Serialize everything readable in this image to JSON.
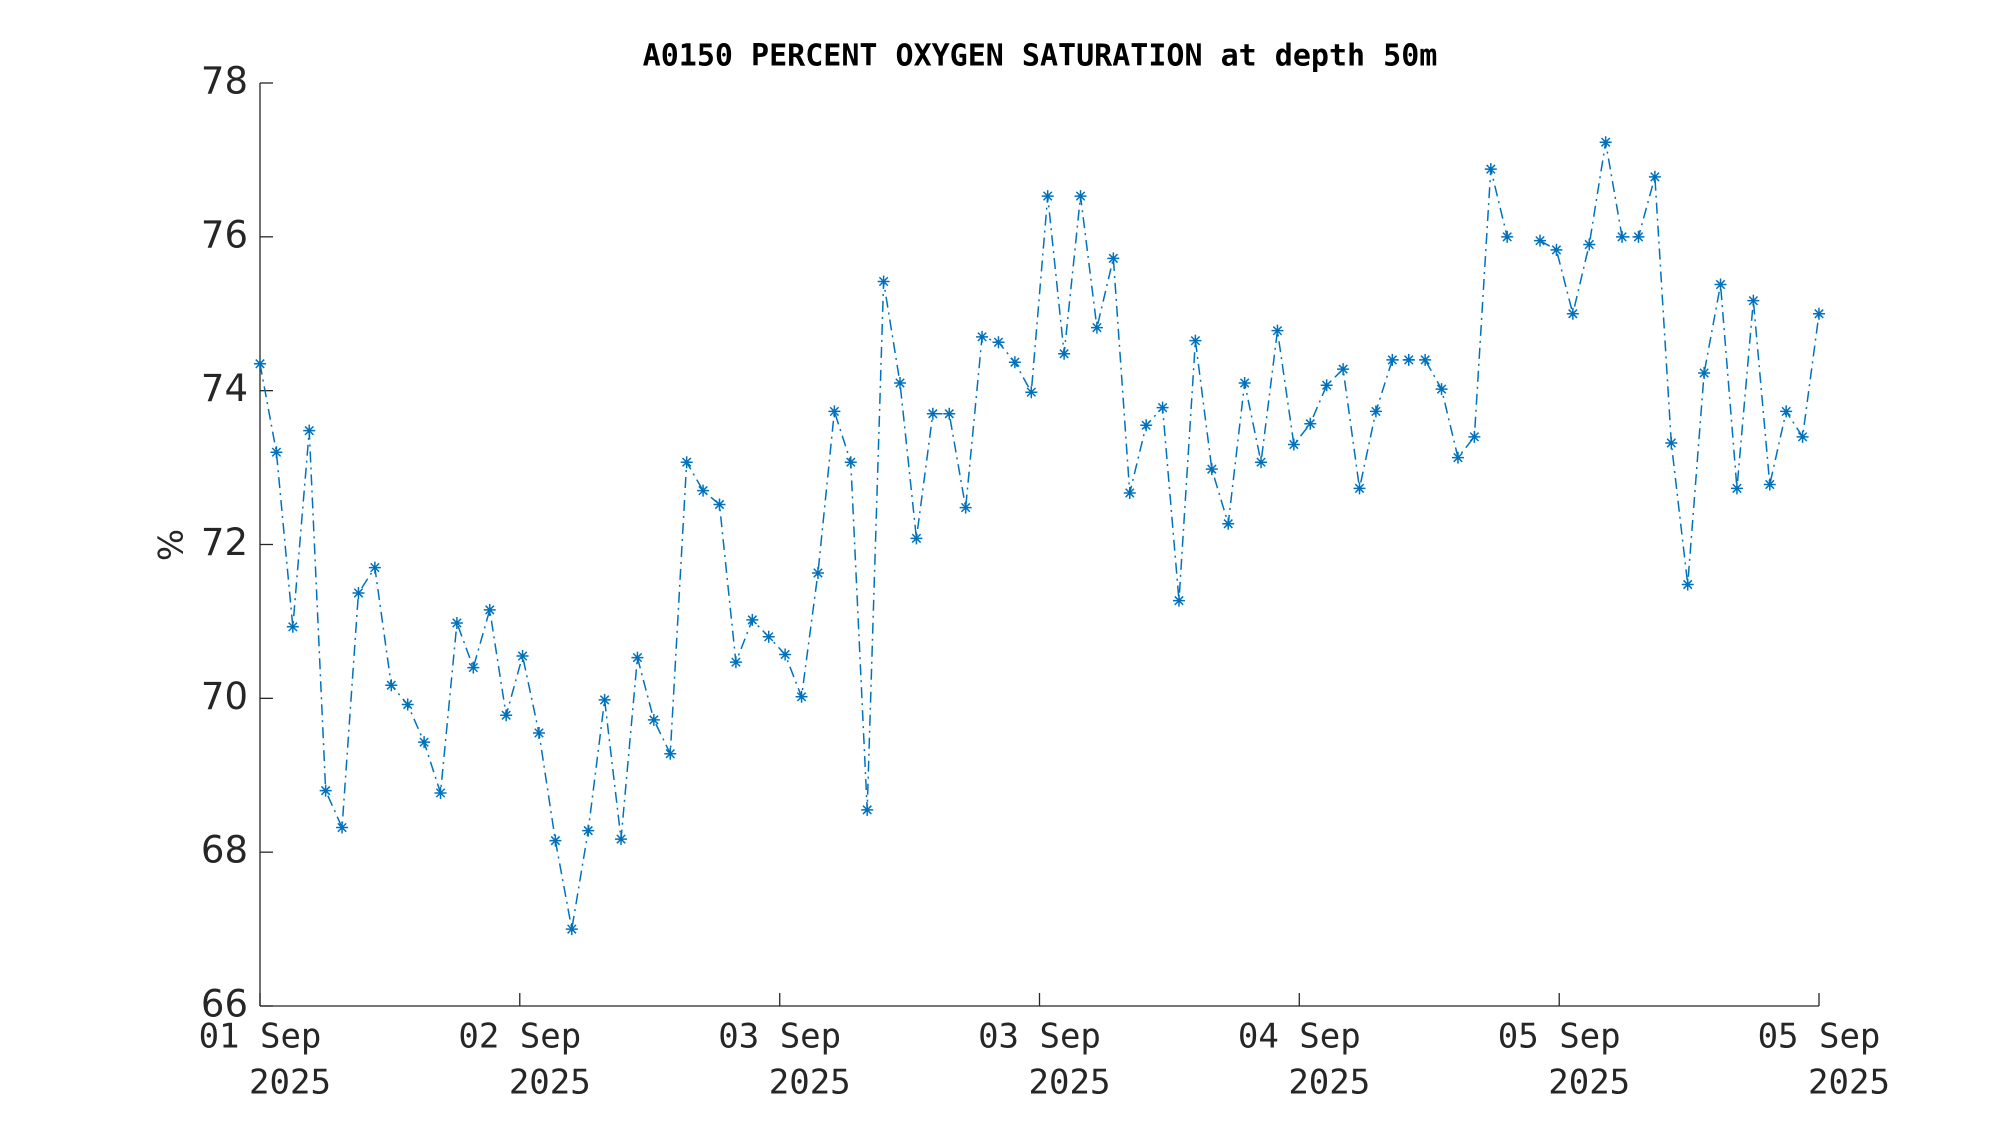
{
  "chart_data": {
    "type": "line",
    "title": "A0150 PERCENT OXYGEN SATURATION at depth 50m",
    "ylabel": "%",
    "series": [
      {
        "name": "A0150",
        "color": "#0072bd",
        "marker": "asterisk",
        "linestyle": "dashdot",
        "values": [
          74.35,
          73.2,
          70.93,
          73.48,
          68.8,
          68.32,
          71.37,
          71.7,
          70.17,
          69.92,
          69.43,
          68.77,
          70.98,
          70.4,
          71.15,
          69.78,
          70.55,
          69.55,
          68.15,
          67.0,
          68.28,
          69.98,
          68.17,
          70.53,
          69.72,
          69.28,
          73.07,
          72.7,
          72.52,
          70.47,
          71.02,
          70.8,
          70.57,
          70.02,
          71.63,
          73.73,
          73.07,
          68.55,
          75.42,
          74.1,
          72.08,
          73.7,
          73.7,
          72.48,
          74.7,
          74.63,
          74.37,
          73.98,
          76.53,
          74.48,
          76.53,
          74.82,
          75.72,
          72.67,
          73.55,
          73.78,
          71.27,
          74.65,
          72.98,
          72.27,
          74.1,
          73.07,
          74.78,
          73.3,
          73.57,
          74.07,
          74.28,
          72.73,
          73.73,
          74.4,
          74.4,
          74.4,
          74.02,
          73.13,
          73.4,
          76.88,
          76.0,
          null,
          75.95,
          75.83,
          75.0,
          75.9,
          77.23,
          76.0,
          76.0,
          76.78,
          73.32,
          71.48,
          74.23,
          75.38,
          72.73,
          75.17,
          72.78,
          73.73,
          73.4,
          75.0
        ]
      }
    ],
    "xlim": [
      0,
      95
    ],
    "xticks": [
      {
        "value": 0,
        "label": [
          "01 Sep",
          "2025"
        ]
      },
      {
        "value": 15.83,
        "label": [
          "02 Sep",
          "2025"
        ]
      },
      {
        "value": 31.67,
        "label": [
          "03 Sep",
          "2025"
        ]
      },
      {
        "value": 47.5,
        "label": [
          "03 Sep",
          "2025"
        ]
      },
      {
        "value": 63.33,
        "label": [
          "04 Sep",
          "2025"
        ]
      },
      {
        "value": 79.17,
        "label": [
          "05 Sep",
          "2025"
        ]
      },
      {
        "value": 95,
        "label": [
          "05 Sep",
          "2025"
        ]
      }
    ],
    "ylim": [
      66,
      78
    ],
    "yticks": [
      66,
      68,
      70,
      72,
      74,
      76,
      78
    ],
    "grid": false
  }
}
